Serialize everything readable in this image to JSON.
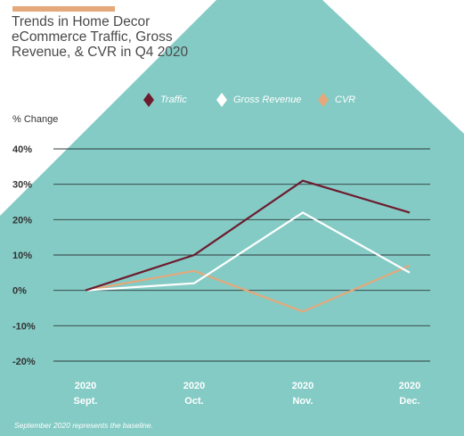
{
  "colors": {
    "background": "#ffffff",
    "panel": "#84cbc5",
    "accent": "#e4a87a",
    "traffic": "#6e1b2e",
    "gross_revenue": "#ffffff",
    "cvr": "#e4a87a",
    "gridline": "#2e3a3a"
  },
  "title": "Trends in Home Decor eCommerce Traffic, Gross Revenue, & CVR in Q4 2020",
  "footnote": "September 2020 represents the baseline.",
  "chart_data": {
    "type": "line",
    "title": "Trends in Home Decor eCommerce Traffic, Gross Revenue, & CVR in Q4 2020",
    "ylabel": "% Change",
    "xlabel": "",
    "categories": [
      {
        "year": "2020",
        "month": "Sept."
      },
      {
        "year": "2020",
        "month": "Oct."
      },
      {
        "year": "2020",
        "month": "Nov."
      },
      {
        "year": "2020",
        "month": "Dec."
      }
    ],
    "yticks": [
      "40%",
      "30%",
      "20%",
      "10%",
      "0%",
      "-10%",
      "-20%"
    ],
    "ytick_values": [
      40,
      30,
      20,
      10,
      0,
      -10,
      -20
    ],
    "ylim": [
      -20,
      40
    ],
    "grid": true,
    "legend_position": "top",
    "series": [
      {
        "name": "Traffic",
        "color": "#6e1b2e",
        "marker": "diamond",
        "values": [
          0,
          10,
          31,
          22
        ]
      },
      {
        "name": "Gross Revenue",
        "color": "#ffffff",
        "marker": "diamond",
        "values": [
          0,
          2,
          22,
          5
        ]
      },
      {
        "name": "CVR",
        "color": "#e4a87a",
        "marker": "diamond",
        "values": [
          0,
          5.5,
          -6,
          7
        ]
      }
    ]
  }
}
